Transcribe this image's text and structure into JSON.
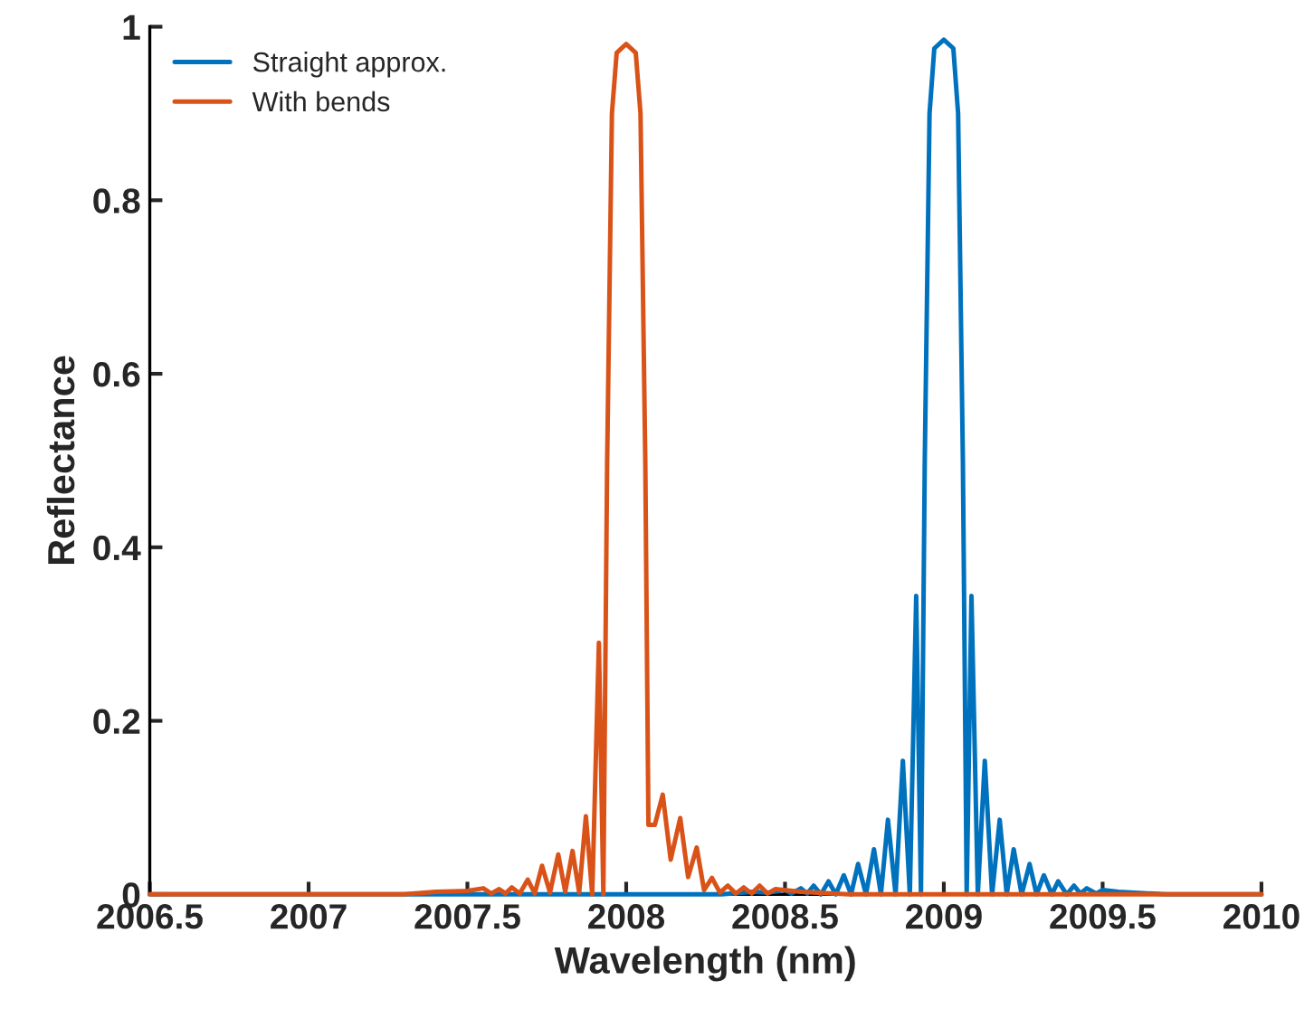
{
  "chart_data": {
    "type": "line",
    "xlabel": "Wavelength (nm)",
    "ylabel": "Reflectance",
    "xlim": [
      2006.5,
      2010
    ],
    "xticks": [
      2006.5,
      2007,
      2007.5,
      2008,
      2008.5,
      2009,
      2009.5,
      2010
    ],
    "ylim": [
      0,
      1
    ],
    "yticks": [
      0,
      0.2,
      0.4,
      0.6,
      0.8,
      1
    ],
    "grid": false,
    "legend": "top left",
    "marker": "none",
    "line_style": "solid",
    "series": [
      {
        "name": "Straight approx.",
        "color": "#0072bd",
        "x": [
          2006.5,
          2008.3,
          2008.4,
          2008.45,
          2008.5,
          2008.52,
          2008.55,
          2008.57,
          2008.59,
          2008.613,
          2008.637,
          2008.66,
          2008.685,
          2008.708,
          2008.73,
          2008.755,
          2008.78,
          2008.802,
          2008.824,
          2008.848,
          2008.871,
          2008.893,
          2008.913,
          2008.928,
          2008.94,
          2008.955,
          2008.97,
          2009,
          2009.03,
          2009.045,
          2009.06,
          2009.072,
          2009.087,
          2009.107,
          2009.129,
          2009.152,
          2009.176,
          2009.198,
          2009.22,
          2009.245,
          2009.27,
          2009.292,
          2009.315,
          2009.34,
          2009.36,
          2009.387,
          2009.41,
          2009.43,
          2009.45,
          2009.48,
          2009.5,
          2009.55,
          2009.6,
          2009.7,
          2010
        ],
        "values": [
          0,
          0,
          0.003,
          0.002,
          0.005,
          0.001,
          0.007,
          0.001,
          0.01,
          0,
          0.015,
          0,
          0.022,
          0,
          0.035,
          0,
          0.052,
          0,
          0.086,
          0,
          0.154,
          0,
          0.344,
          0,
          0.5,
          0.9,
          0.975,
          0.985,
          0.975,
          0.9,
          0.5,
          0,
          0.344,
          0,
          0.154,
          0,
          0.086,
          0,
          0.052,
          0,
          0.035,
          0,
          0.022,
          0,
          0.015,
          0,
          0.01,
          0.001,
          0.007,
          0.001,
          0.005,
          0.003,
          0.002,
          0,
          0
        ]
      },
      {
        "name": "With bends",
        "color": "#d95319",
        "x": [
          2006.5,
          2007.3,
          2007.4,
          2007.5,
          2007.55,
          2007.575,
          2007.6,
          2007.62,
          2007.64,
          2007.665,
          2007.69,
          2007.712,
          2007.735,
          2007.76,
          2007.786,
          2007.808,
          2007.831,
          2007.852,
          2007.873,
          2007.893,
          2007.914,
          2007.928,
          2007.94,
          2007.955,
          2007.97,
          2008,
          2008.03,
          2008.045,
          2008.06,
          2008.07,
          2008.09,
          2008.115,
          2008.14,
          2008.17,
          2008.195,
          2008.222,
          2008.245,
          2008.27,
          2008.295,
          2008.32,
          2008.345,
          2008.37,
          2008.395,
          2008.42,
          2008.445,
          2008.47,
          2008.55,
          2008.7,
          2010
        ],
        "values": [
          0,
          0,
          0.003,
          0.004,
          0.007,
          0.001,
          0.006,
          0.001,
          0.008,
          0.001,
          0.017,
          0.001,
          0.033,
          0.002,
          0.046,
          0.003,
          0.05,
          0.002,
          0.09,
          0,
          0.29,
          0,
          0.5,
          0.9,
          0.97,
          0.98,
          0.97,
          0.9,
          0.5,
          0.08,
          0.08,
          0.115,
          0.04,
          0.088,
          0.02,
          0.054,
          0.005,
          0.019,
          0.002,
          0.01,
          0.001,
          0.008,
          0.001,
          0.01,
          0.001,
          0.006,
          0.003,
          0,
          0
        ]
      }
    ]
  }
}
